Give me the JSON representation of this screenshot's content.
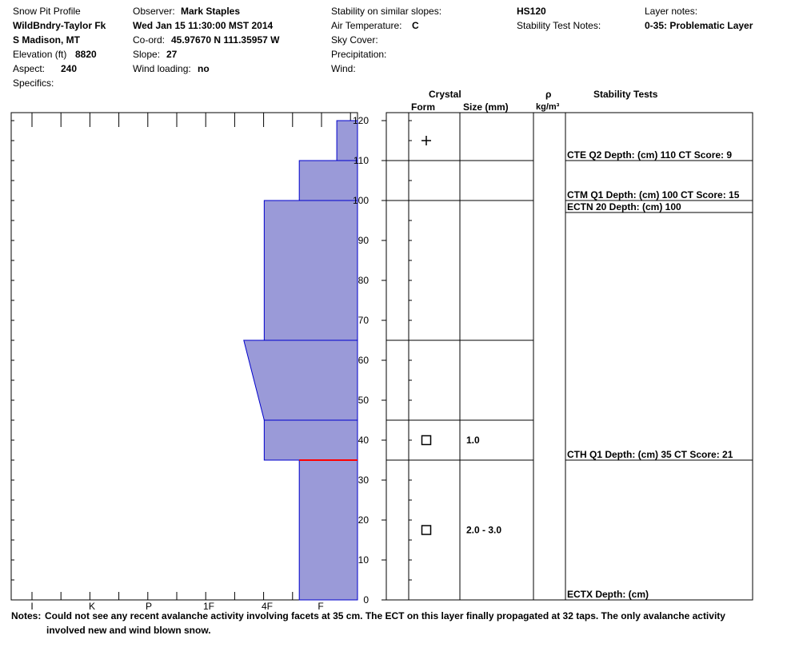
{
  "header": {
    "title": "Snow Pit Profile",
    "location": "WildBndry-Taylor Fk",
    "region": "S Madison, MT",
    "elevation_label": "Elevation (ft)",
    "elevation_value": "8820",
    "aspect_label": "Aspect:",
    "aspect_value": "240",
    "specifics_label": "Specifics:",
    "observer_label": "Observer:",
    "observer_value": "Mark Staples",
    "datetime": "Wed Jan 15 11:30:00 MST 2014",
    "coord_label": "Co-ord:",
    "coord_value": "45.97670 N 111.35957 W",
    "slope_label": "Slope:",
    "slope_value": "27",
    "wind_loading_label": "Wind loading:",
    "wind_loading_value": "no",
    "stability_similar_label": "Stability on similar slopes:",
    "air_temp_label": "Air Temperature:",
    "air_temp_value": "C",
    "sky_cover_label": "Sky Cover:",
    "precip_label": "Precipitation:",
    "wind_label": "Wind:",
    "hs_value": "HS120",
    "stability_notes_label": "Stability Test Notes:",
    "layer_notes_label": "Layer notes:",
    "layer_notes_value": "0-35: Problematic Layer"
  },
  "columns": {
    "crystal": "Crystal",
    "form": "Form",
    "size": "Size (mm)",
    "rho": "ρ",
    "density_unit": "kg/m³",
    "stability_tests": "Stability Tests"
  },
  "chart_data": {
    "type": "area",
    "title": "",
    "xlabel": "",
    "ylabel": "",
    "hardness_scale": [
      "I",
      "K",
      "P",
      "1F",
      "4F",
      "F"
    ],
    "ylim": [
      0,
      120
    ],
    "y_ticks": [
      0,
      10,
      20,
      30,
      40,
      50,
      60,
      70,
      80,
      90,
      100,
      110,
      120
    ],
    "fill_color": "#9a9ad8",
    "edge_color": "#0000cc",
    "weak_layer_color": "#ff0000",
    "layers": [
      {
        "bottom": 0,
        "top": 35,
        "hardness_bottom": 4.6,
        "hardness_top": 4.6
      },
      {
        "bottom": 35,
        "top": 45,
        "hardness_bottom": 3.95,
        "hardness_top": 3.95
      },
      {
        "bottom": 45,
        "top": 65,
        "hardness_bottom": 3.95,
        "hardness_top": 3.6
      },
      {
        "bottom": 65,
        "top": 100,
        "hardness_bottom": 3.95,
        "hardness_top": 3.95
      },
      {
        "bottom": 100,
        "top": 110,
        "hardness_bottom": 4.6,
        "hardness_top": 4.6
      },
      {
        "bottom": 110,
        "top": 120,
        "hardness_bottom": 5.3,
        "hardness_top": 5.3
      }
    ],
    "weak_layer_depth": 35,
    "layer_boundaries": [
      35,
      45,
      65,
      100,
      110
    ],
    "crystals": [
      {
        "depth": 115,
        "symbol": "+",
        "size": ""
      },
      {
        "depth": 40,
        "symbol": "□",
        "size": "1.0"
      },
      {
        "depth": 17.5,
        "symbol": "□",
        "size": "2.0 - 3.0"
      }
    ],
    "stability_tests": [
      {
        "depth": 110,
        "text": "CTE Q2 Depth: (cm) 110 CT Score: 9"
      },
      {
        "depth": 100,
        "text": "CTM Q1 Depth: (cm) 100 CT Score: 15"
      },
      {
        "depth": 100,
        "text": "ECTN 20   Depth: (cm) 100"
      },
      {
        "depth": 35,
        "text": "CTH Q1 Depth: (cm) 35 CT Score: 21"
      },
      {
        "depth": 0,
        "text": "ECTX   Depth: (cm)"
      }
    ]
  },
  "notes": {
    "label": "Notes:",
    "line1": "Could not see any recent avalanche activity involving facets at 35 cm. The ECT on this layer finally propagated at 32 taps. The only avalanche activity",
    "line2": "involved new and wind blown snow."
  }
}
